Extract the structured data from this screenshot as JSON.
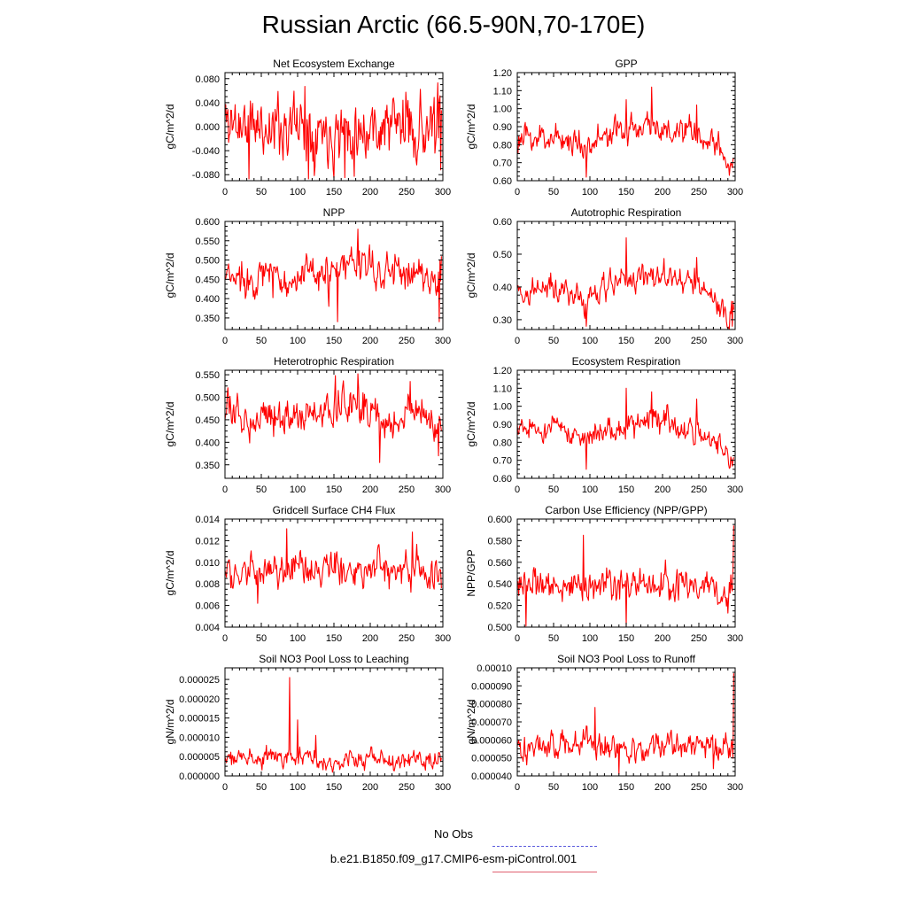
{
  "title": "Russian Arctic (66.5-90N,70-170E)",
  "legend": [
    {
      "label": "No Obs",
      "color": "#5a5adc",
      "style": "dashed"
    },
    {
      "label": "b.e21.B1850.f09_g17.CMIP6-esm-piControl.001",
      "color": "#e06070",
      "style": "solid"
    }
  ],
  "series_color": "#ff0000",
  "chart_data": [
    {
      "type": "line",
      "title": "Net Ecosystem Exchange",
      "ylabel": "gC/m^2/d",
      "xlim": [
        0,
        300
      ],
      "xticks": [
        "0",
        "50",
        "100",
        "150",
        "200",
        "250",
        "300"
      ],
      "ylim": [
        -0.09,
        0.09
      ],
      "yticks": [
        "-0.080",
        "-0.040",
        "0.000",
        "0.040",
        "0.080"
      ],
      "ytick_values": [
        -0.08,
        -0.04,
        0.0,
        0.04,
        0.08
      ],
      "anchors": [
        [
          0,
          0.01
        ],
        [
          50,
          0.0
        ],
        [
          100,
          0.005
        ],
        [
          150,
          -0.005
        ],
        [
          200,
          0.0
        ],
        [
          250,
          0.005
        ],
        [
          298,
          -0.01
        ]
      ],
      "variability": 0.038,
      "spikes": [
        [
          33,
          -0.087
        ],
        [
          115,
          -0.087
        ],
        [
          165,
          -0.085
        ],
        [
          110,
          0.067
        ],
        [
          293,
          0.073
        ],
        [
          297,
          -0.072
        ]
      ],
      "series_name": "b.e21.B1850.f09_g17.CMIP6-esm-piControl.001",
      "seed": 11
    },
    {
      "type": "line",
      "title": "GPP",
      "ylabel": "gC/m^2/d",
      "xlim": [
        0,
        300
      ],
      "xticks": [
        "0",
        "50",
        "100",
        "150",
        "200",
        "250",
        "300"
      ],
      "ylim": [
        0.6,
        1.2
      ],
      "yticks": [
        "0.60",
        "0.70",
        "0.80",
        "0.90",
        "1.00",
        "1.10",
        "1.20"
      ],
      "ytick_values": [
        0.6,
        0.7,
        0.8,
        0.9,
        1.0,
        1.1,
        1.2
      ],
      "anchors": [
        [
          0,
          0.82
        ],
        [
          50,
          0.85
        ],
        [
          90,
          0.8
        ],
        [
          150,
          0.88
        ],
        [
          185,
          0.93
        ],
        [
          200,
          0.87
        ],
        [
          250,
          0.85
        ],
        [
          298,
          0.7
        ]
      ],
      "variability": 0.055,
      "spikes": [
        [
          95,
          0.62
        ],
        [
          150,
          1.05
        ],
        [
          185,
          1.12
        ],
        [
          247,
          1.02
        ],
        [
          292,
          0.63
        ]
      ],
      "series_name": "b.e21.B1850.f09_g17.CMIP6-esm-piControl.001",
      "seed": 23
    },
    {
      "type": "line",
      "title": "NPP",
      "ylabel": "gC/m^2/d",
      "xlim": [
        0,
        300
      ],
      "xticks": [
        "0",
        "50",
        "100",
        "150",
        "200",
        "250",
        "300"
      ],
      "ylim": [
        0.32,
        0.6
      ],
      "yticks": [
        "0.350",
        "0.400",
        "0.450",
        "0.500",
        "0.550",
        "0.600"
      ],
      "ytick_values": [
        0.35,
        0.4,
        0.45,
        0.5,
        0.55,
        0.6
      ],
      "anchors": [
        [
          0,
          0.45
        ],
        [
          50,
          0.46
        ],
        [
          100,
          0.45
        ],
        [
          150,
          0.46
        ],
        [
          185,
          0.5
        ],
        [
          200,
          0.47
        ],
        [
          250,
          0.47
        ],
        [
          298,
          0.45
        ]
      ],
      "variability": 0.035,
      "spikes": [
        [
          155,
          0.34
        ],
        [
          183,
          0.58
        ],
        [
          295,
          0.34
        ],
        [
          298,
          0.51
        ]
      ],
      "series_name": "b.e21.B1850.f09_g17.CMIP6-esm-piControl.001",
      "seed": 37
    },
    {
      "type": "line",
      "title": "Autotrophic Respiration",
      "ylabel": "gC/m^2/d",
      "xlim": [
        0,
        300
      ],
      "xticks": [
        "0",
        "50",
        "100",
        "150",
        "200",
        "250",
        "300"
      ],
      "ylim": [
        0.27,
        0.6
      ],
      "yticks": [
        "0.30",
        "0.40",
        "0.50",
        "0.60"
      ],
      "ytick_values": [
        0.3,
        0.4,
        0.5,
        0.6
      ],
      "anchors": [
        [
          0,
          0.38
        ],
        [
          50,
          0.4
        ],
        [
          90,
          0.36
        ],
        [
          150,
          0.42
        ],
        [
          190,
          0.44
        ],
        [
          250,
          0.4
        ],
        [
          298,
          0.31
        ]
      ],
      "variability": 0.03,
      "spikes": [
        [
          95,
          0.28
        ],
        [
          150,
          0.55
        ],
        [
          185,
          0.45
        ],
        [
          247,
          0.49
        ],
        [
          296,
          0.28
        ]
      ],
      "series_name": "b.e21.B1850.f09_g17.CMIP6-esm-piControl.001",
      "seed": 41
    },
    {
      "type": "line",
      "title": "Heterotrophic Respiration",
      "ylabel": "gC/m^2/d",
      "xlim": [
        0,
        300
      ],
      "xticks": [
        "0",
        "50",
        "100",
        "150",
        "200",
        "250",
        "300"
      ],
      "ylim": [
        0.32,
        0.56
      ],
      "yticks": [
        "0.350",
        "0.400",
        "0.450",
        "0.500",
        "0.550"
      ],
      "ytick_values": [
        0.35,
        0.4,
        0.45,
        0.5,
        0.55
      ],
      "anchors": [
        [
          0,
          0.47
        ],
        [
          30,
          0.45
        ],
        [
          60,
          0.47
        ],
        [
          100,
          0.45
        ],
        [
          140,
          0.47
        ],
        [
          180,
          0.49
        ],
        [
          220,
          0.44
        ],
        [
          260,
          0.47
        ],
        [
          298,
          0.42
        ]
      ],
      "variability": 0.028,
      "spikes": [
        [
          152,
          0.548
        ],
        [
          183,
          0.552
        ],
        [
          213,
          0.355
        ],
        [
          255,
          0.535
        ],
        [
          294,
          0.37
        ]
      ],
      "series_name": "b.e21.B1850.f09_g17.CMIP6-esm-piControl.001",
      "seed": 53
    },
    {
      "type": "line",
      "title": "Ecosystem Respiration",
      "ylabel": "gC/m^2/d",
      "xlim": [
        0,
        300
      ],
      "xticks": [
        "0",
        "50",
        "100",
        "150",
        "200",
        "250",
        "300"
      ],
      "ylim": [
        0.6,
        1.2
      ],
      "yticks": [
        "0.60",
        "0.70",
        "0.80",
        "0.90",
        "1.00",
        "1.10",
        "1.20"
      ],
      "ytick_values": [
        0.6,
        0.7,
        0.8,
        0.9,
        1.0,
        1.1,
        1.2
      ],
      "anchors": [
        [
          0,
          0.86
        ],
        [
          50,
          0.88
        ],
        [
          90,
          0.82
        ],
        [
          150,
          0.88
        ],
        [
          190,
          0.93
        ],
        [
          250,
          0.86
        ],
        [
          298,
          0.7
        ]
      ],
      "variability": 0.05,
      "spikes": [
        [
          95,
          0.65
        ],
        [
          150,
          1.1
        ],
        [
          185,
          1.08
        ],
        [
          247,
          1.04
        ],
        [
          293,
          0.66
        ]
      ],
      "series_name": "b.e21.B1850.f09_g17.CMIP6-esm-piControl.001",
      "seed": 61
    },
    {
      "type": "line",
      "title": "Gridcell Surface CH4 Flux",
      "ylabel": "gC/m^2/d",
      "xlim": [
        0,
        300
      ],
      "xticks": [
        "0",
        "50",
        "100",
        "150",
        "200",
        "250",
        "300"
      ],
      "ylim": [
        0.004,
        0.014
      ],
      "yticks": [
        "0.004",
        "0.006",
        "0.008",
        "0.010",
        "0.012",
        "0.014"
      ],
      "ytick_values": [
        0.004,
        0.006,
        0.008,
        0.01,
        0.012,
        0.014
      ],
      "anchors": [
        [
          0,
          0.0092
        ],
        [
          50,
          0.0088
        ],
        [
          100,
          0.0092
        ],
        [
          150,
          0.0093
        ],
        [
          200,
          0.0095
        ],
        [
          250,
          0.0096
        ],
        [
          298,
          0.009
        ]
      ],
      "variability": 0.0011,
      "spikes": [
        [
          45,
          0.0062
        ],
        [
          85,
          0.0131
        ],
        [
          258,
          0.0128
        ],
        [
          298,
          0.0076
        ]
      ],
      "series_name": "b.e21.B1850.f09_g17.CMIP6-esm-piControl.001",
      "seed": 71
    },
    {
      "type": "line",
      "title": "Carbon Use Efficiency (NPP/GPP)",
      "ylabel": "NPP/GPP",
      "xlim": [
        0,
        300
      ],
      "xticks": [
        "0",
        "50",
        "100",
        "150",
        "200",
        "250",
        "300"
      ],
      "ylim": [
        0.5,
        0.6
      ],
      "yticks": [
        "0.500",
        "0.520",
        "0.540",
        "0.560",
        "0.580",
        "0.600"
      ],
      "ytick_values": [
        0.5,
        0.52,
        0.54,
        0.56,
        0.58,
        0.6
      ],
      "anchors": [
        [
          0,
          0.54
        ],
        [
          50,
          0.537
        ],
        [
          100,
          0.539
        ],
        [
          150,
          0.535
        ],
        [
          200,
          0.538
        ],
        [
          250,
          0.54
        ],
        [
          298,
          0.54
        ]
      ],
      "variability": 0.011,
      "spikes": [
        [
          12,
          0.501
        ],
        [
          91,
          0.585
        ],
        [
          150,
          0.501
        ],
        [
          290,
          0.513
        ],
        [
          298,
          0.594
        ]
      ],
      "series_name": "b.e21.B1850.f09_g17.CMIP6-esm-piControl.001",
      "seed": 83
    },
    {
      "type": "line",
      "title": "Soil NO3 Pool Loss to Leaching",
      "ylabel": "gN/m^2/d",
      "xlim": [
        0,
        300
      ],
      "xticks": [
        "0",
        "50",
        "100",
        "150",
        "200",
        "250",
        "300"
      ],
      "ylim": [
        0.0,
        2.8e-05
      ],
      "yticks": [
        "0.000000",
        "0.000005",
        "0.000010",
        "0.000015",
        "0.000020",
        "0.000025"
      ],
      "ytick_values": [
        0.0,
        5e-06,
        1e-05,
        1.5e-05,
        2e-05,
        2.5e-05
      ],
      "anchors": [
        [
          0,
          4.5e-06
        ],
        [
          50,
          4.8e-06
        ],
        [
          100,
          4.5e-06
        ],
        [
          150,
          4.2e-06
        ],
        [
          200,
          4.5e-06
        ],
        [
          250,
          4.4e-06
        ],
        [
          298,
          4e-06
        ]
      ],
      "variability": 1.7e-06,
      "spikes": [
        [
          89,
          2.55e-05
        ],
        [
          100,
          1.45e-05
        ],
        [
          125,
          1.05e-05
        ]
      ],
      "series_name": "b.e21.B1850.f09_g17.CMIP6-esm-piControl.001",
      "seed": 97
    },
    {
      "type": "line",
      "title": "Soil NO3 Pool Loss to Runoff",
      "ylabel": "gN/m^2/d",
      "xlim": [
        0,
        300
      ],
      "xticks": [
        "0",
        "50",
        "100",
        "150",
        "200",
        "250",
        "300"
      ],
      "ylim": [
        4e-05,
        0.0001
      ],
      "yticks": [
        "0.000040",
        "0.000050",
        "0.000060",
        "0.000070",
        "0.000080",
        "0.000090",
        "0.00010"
      ],
      "ytick_values": [
        4e-05,
        5e-05,
        6e-05,
        7e-05,
        8e-05,
        9e-05,
        0.0001
      ],
      "anchors": [
        [
          0,
          5.7e-05
        ],
        [
          50,
          5.6e-05
        ],
        [
          100,
          6e-05
        ],
        [
          150,
          5.6e-05
        ],
        [
          200,
          5.7e-05
        ],
        [
          250,
          5.6e-05
        ],
        [
          298,
          5.5e-05
        ]
      ],
      "variability": 5.5e-06,
      "spikes": [
        [
          107,
          7.8e-05
        ],
        [
          140,
          4.1e-05
        ],
        [
          270,
          4.4e-05
        ],
        [
          298,
          9.7e-05
        ]
      ],
      "series_name": "b.e21.B1850.f09_g17.CMIP6-esm-piControl.001",
      "seed": 101
    }
  ]
}
